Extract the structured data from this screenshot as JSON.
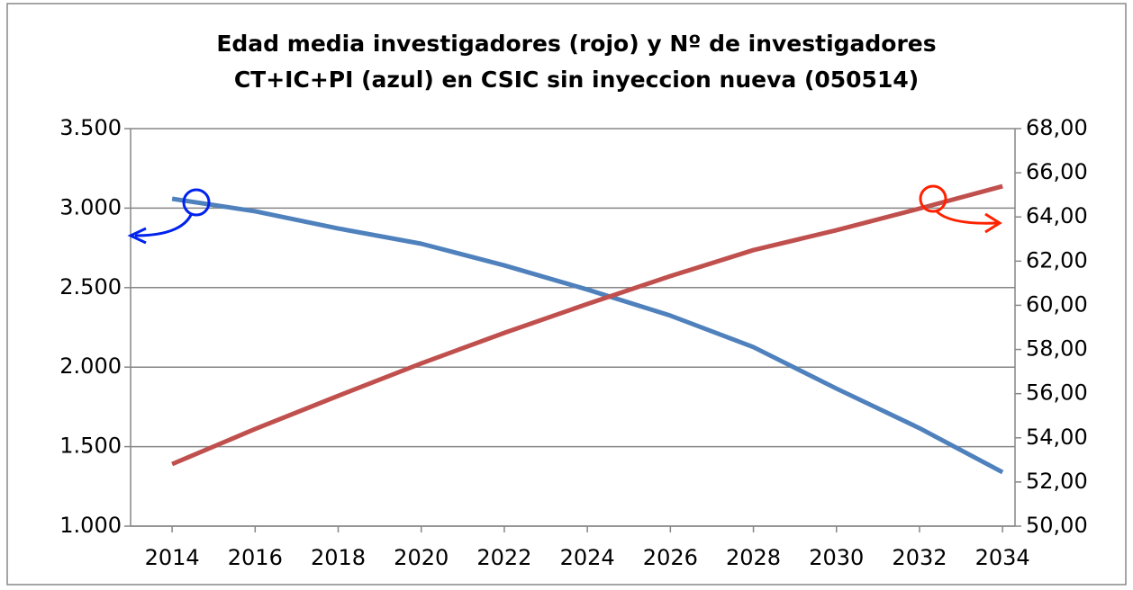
{
  "chart_data": {
    "type": "line",
    "title": [
      "Edad media investigadores (rojo) y Nº de investigadores",
      "CT+IC+PI (azul) en CSIC sin inyeccion nueva (050514)"
    ],
    "x": [
      2014,
      2016,
      2018,
      2020,
      2022,
      2024,
      2026,
      2028,
      2030,
      2032,
      2034
    ],
    "xlim": [
      2013,
      2034.3
    ],
    "xticks": [
      2014,
      2016,
      2018,
      2020,
      2022,
      2024,
      2026,
      2028,
      2030,
      2032,
      2034
    ],
    "ylim": [
      1000,
      3500
    ],
    "yticks": [
      {
        "value": 1000,
        "label": "1.000"
      },
      {
        "value": 1500,
        "label": "1.500"
      },
      {
        "value": 2000,
        "label": "2.000"
      },
      {
        "value": 2500,
        "label": "2.500"
      },
      {
        "value": 3000,
        "label": "3.000"
      },
      {
        "value": 3500,
        "label": "3.500"
      }
    ],
    "y2lim": [
      50,
      68
    ],
    "y2ticks": [
      {
        "value": 50,
        "label": "50,00"
      },
      {
        "value": 52,
        "label": "52,00"
      },
      {
        "value": 54,
        "label": "54,00"
      },
      {
        "value": 56,
        "label": "56,00"
      },
      {
        "value": 58,
        "label": "58,00"
      },
      {
        "value": 60,
        "label": "60,00"
      },
      {
        "value": 62,
        "label": "62,00"
      },
      {
        "value": 64,
        "label": "64,00"
      },
      {
        "value": 66,
        "label": "66,00"
      },
      {
        "value": 68,
        "label": "68,00"
      }
    ],
    "grid": true,
    "series": [
      {
        "color": "#4f81bd",
        "values": [
          3059,
          2980,
          2872,
          2776,
          2640,
          2488,
          2324,
          2126,
          1865,
          1616,
          1339
        ]
      },
      {
        "color": "#c0504d",
        "axis": "y2",
        "values": [
          52.81,
          54.4,
          55.9,
          57.37,
          58.75,
          60.06,
          61.32,
          62.5,
          63.4,
          64.38,
          65.39
        ]
      }
    ]
  }
}
